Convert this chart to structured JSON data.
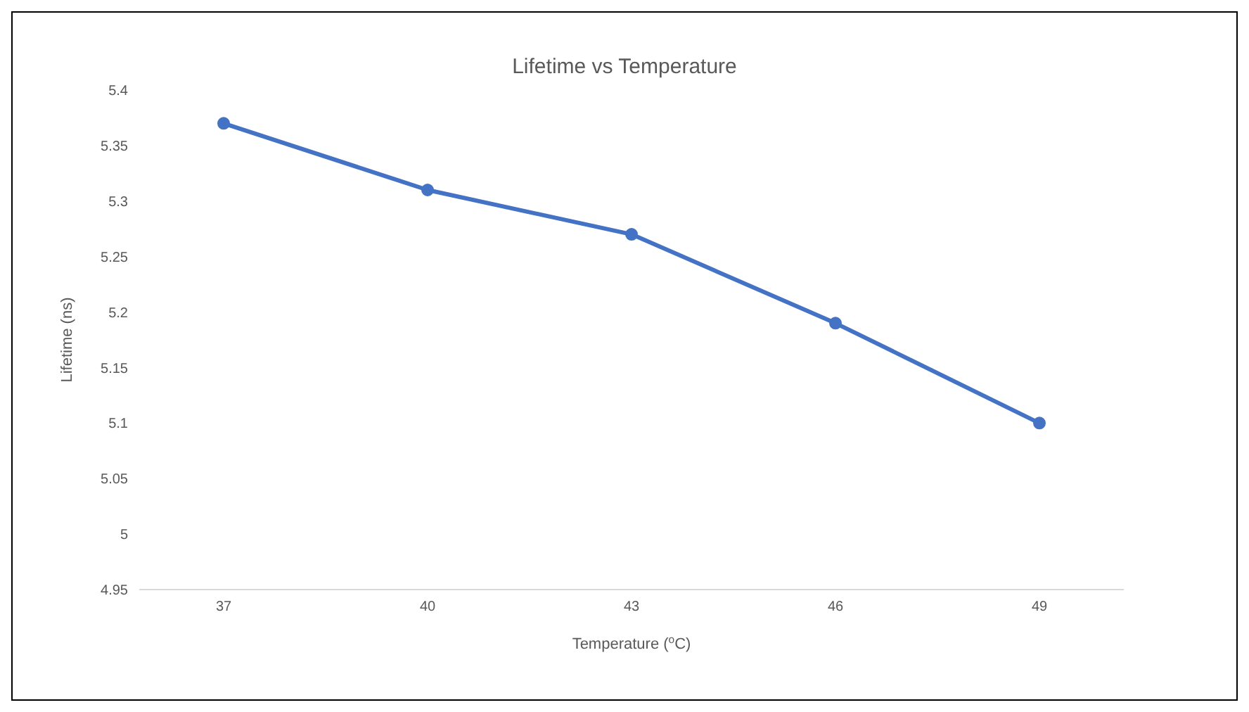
{
  "chart_data": {
    "type": "line",
    "title": "Lifetime vs Temperature",
    "xlabel": "Temperature ($^{o}$C)",
    "ylabel": "Lifetime (ns)",
    "categories": [
      "37",
      "40",
      "43",
      "46",
      "49"
    ],
    "series": [
      {
        "color": "#4472c4",
        "values": [
          5.37,
          5.31,
          5.27,
          5.19,
          5.1
        ]
      }
    ],
    "ylim": [
      4.95,
      5.4
    ],
    "yticks": [
      4.95,
      5,
      5.05,
      5.1,
      5.15,
      5.2,
      5.25,
      5.3,
      5.35,
      5.4
    ],
    "grid": false,
    "legend": false,
    "marker": "circle",
    "line_style": "solid"
  }
}
